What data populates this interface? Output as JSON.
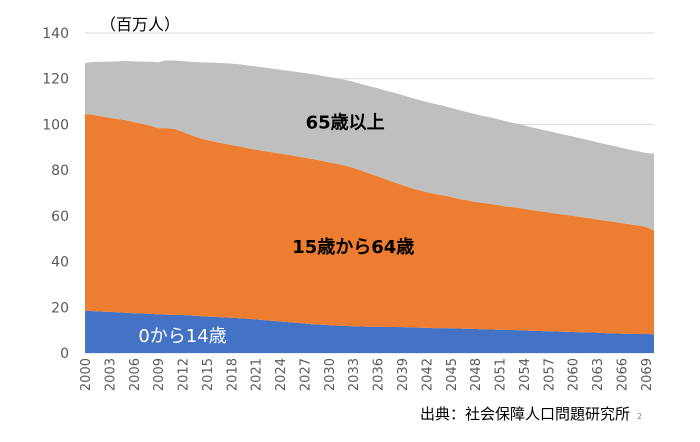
{
  "chart_data": {
    "type": "area",
    "stacked": true,
    "unit_label": "（百万人）",
    "ylim": [
      0,
      140
    ],
    "y_ticks": [
      0,
      20,
      40,
      60,
      80,
      100,
      120,
      140
    ],
    "grid": true,
    "x": [
      2000,
      2001,
      2002,
      2003,
      2004,
      2005,
      2006,
      2007,
      2008,
      2009,
      2010,
      2011,
      2012,
      2013,
      2014,
      2015,
      2016,
      2017,
      2018,
      2019,
      2020,
      2021,
      2022,
      2023,
      2024,
      2025,
      2026,
      2027,
      2028,
      2029,
      2030,
      2031,
      2032,
      2033,
      2034,
      2035,
      2036,
      2037,
      2038,
      2039,
      2040,
      2041,
      2042,
      2043,
      2044,
      2045,
      2046,
      2047,
      2048,
      2049,
      2050,
      2051,
      2052,
      2053,
      2054,
      2055,
      2056,
      2057,
      2058,
      2059,
      2060,
      2061,
      2062,
      2063,
      2064,
      2065,
      2066,
      2067,
      2068,
      2069,
      2070
    ],
    "x_tick_labels": [
      "2000",
      "2003",
      "2006",
      "2009",
      "2012",
      "2015",
      "2018",
      "2021",
      "2024",
      "2027",
      "2030",
      "2033",
      "2036",
      "2039",
      "2042",
      "2045",
      "2048",
      "2051",
      "2054",
      "2057",
      "2060",
      "2063",
      "2066",
      "2069"
    ],
    "series": [
      {
        "name": "0から14歳",
        "color": "#4472c4",
        "label_color": "#ffffff",
        "values": [
          18.5,
          18.3,
          18.1,
          18.0,
          17.8,
          17.6,
          17.4,
          17.3,
          17.2,
          16.9,
          16.8,
          16.7,
          16.6,
          16.4,
          16.2,
          15.9,
          15.8,
          15.6,
          15.4,
          15.2,
          15.0,
          14.7,
          14.4,
          14.1,
          13.8,
          13.5,
          13.2,
          12.9,
          12.6,
          12.4,
          12.2,
          12.0,
          11.8,
          11.7,
          11.6,
          11.5,
          11.5,
          11.4,
          11.4,
          11.3,
          11.2,
          11.1,
          11.0,
          10.9,
          10.9,
          10.8,
          10.7,
          10.6,
          10.5,
          10.4,
          10.3,
          10.2,
          10.1,
          10.0,
          9.9,
          9.7,
          9.6,
          9.5,
          9.4,
          9.3,
          9.2,
          9.1,
          9.0,
          8.9,
          8.7,
          8.6,
          8.5,
          8.4,
          8.3,
          8.3,
          8.2
        ]
      },
      {
        "name": "15歳から64歳",
        "color": "#ed7d31",
        "label_color": "#000000",
        "values": [
          86.2,
          85.9,
          85.4,
          84.9,
          84.6,
          84.3,
          83.6,
          83.0,
          82.3,
          81.5,
          81.6,
          81.3,
          80.2,
          79.0,
          77.9,
          77.3,
          76.6,
          76.1,
          75.6,
          75.2,
          74.6,
          74.3,
          74.0,
          73.7,
          73.5,
          73.2,
          72.9,
          72.6,
          72.3,
          71.8,
          71.2,
          70.8,
          70.2,
          69.3,
          68.2,
          67.0,
          65.8,
          64.6,
          63.3,
          62.2,
          61.1,
          60.2,
          59.4,
          58.7,
          58.1,
          57.5,
          56.7,
          56.2,
          55.6,
          55.2,
          54.9,
          54.4,
          53.9,
          53.6,
          53.2,
          52.8,
          52.4,
          52.0,
          51.6,
          51.2,
          50.8,
          50.4,
          50.0,
          49.5,
          49.2,
          48.8,
          48.4,
          47.9,
          47.5,
          46.9,
          45.4
        ]
      },
      {
        "name": "65歳以上",
        "color": "#bfbfbf",
        "label_color": "#000000",
        "values": [
          22.2,
          23.1,
          23.9,
          24.6,
          25.2,
          25.9,
          26.6,
          27.2,
          27.9,
          28.8,
          29.6,
          29.9,
          30.9,
          32.0,
          33.1,
          33.9,
          34.6,
          35.1,
          35.6,
          35.9,
          36.2,
          36.4,
          36.5,
          36.6,
          36.7,
          36.8,
          36.9,
          37.0,
          37.1,
          37.2,
          37.3,
          37.4,
          37.5,
          37.7,
          37.9,
          38.2,
          38.5,
          38.8,
          39.2,
          39.4,
          39.5,
          39.5,
          39.5,
          39.4,
          39.2,
          39.0,
          38.9,
          38.6,
          38.4,
          38.1,
          37.8,
          37.5,
          37.2,
          36.8,
          36.5,
          36.2,
          35.9,
          35.6,
          35.3,
          35.0,
          34.7,
          34.4,
          34.1,
          33.8,
          33.5,
          33.2,
          32.9,
          32.7,
          32.5,
          32.3,
          33.6
        ]
      }
    ],
    "source_note": "出典：社会保障人口問題研究所",
    "page_number": "2"
  }
}
